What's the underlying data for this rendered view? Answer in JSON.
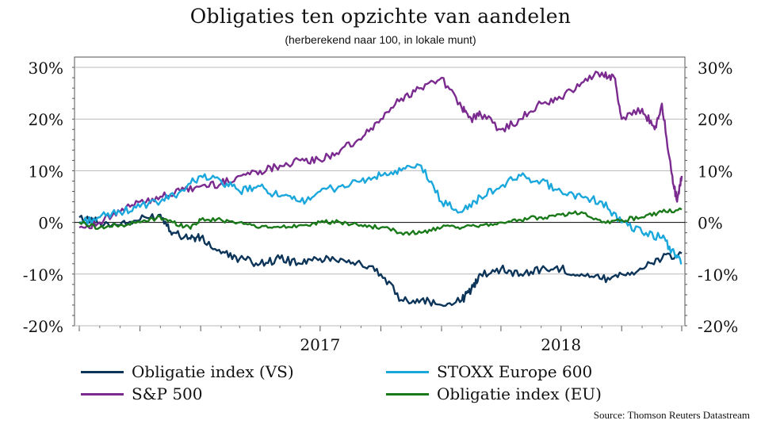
{
  "title": "Obligaties ten opzichte van aandelen",
  "subtitle": "(herberekend naar 100, in lokale munt)",
  "source": "Source: Thomson Reuters Datastream",
  "chart_data": {
    "type": "line",
    "title": "Obligaties ten opzichte van aandelen",
    "subtitle": "(herberekend naar 100, in lokale munt)",
    "xlabel": "",
    "ylabel": "",
    "x_tick_labels": [
      "2017",
      "2018"
    ],
    "y_tick_labels": [
      "30%",
      "20%",
      "10%",
      "0%",
      "-10%",
      "-20%"
    ],
    "y_ticks": [
      30,
      20,
      10,
      0,
      -10,
      -20
    ],
    "ylim": [
      -20,
      30
    ],
    "xlim": [
      "2016-07-01",
      "2018-12-31"
    ],
    "grid": "horizontal",
    "legend_position": "bottom",
    "dual_y_axis": true,
    "series": [
      {
        "name": "Obligatie index (VS)",
        "color": "#0d3559",
        "x": [
          "2016-07-01",
          "2016-08-01",
          "2016-09-01",
          "2016-10-01",
          "2016-11-01",
          "2016-11-20",
          "2016-12-15",
          "2017-01-01",
          "2017-02-01",
          "2017-03-01",
          "2017-04-01",
          "2017-05-01",
          "2017-06-01",
          "2017-07-01",
          "2017-08-01",
          "2017-09-01",
          "2017-10-01",
          "2017-11-01",
          "2017-12-01",
          "2018-01-01",
          "2018-02-01",
          "2018-02-15",
          "2018-03-01",
          "2018-04-01",
          "2018-05-01",
          "2018-06-01",
          "2018-07-01",
          "2018-08-01",
          "2018-09-01",
          "2018-10-01",
          "2018-11-01",
          "2018-12-01",
          "2018-12-31"
        ],
        "values": [
          1,
          0,
          -0.5,
          0.5,
          1.5,
          -2,
          -3,
          -3,
          -6,
          -7,
          -8,
          -7,
          -8,
          -7,
          -7,
          -8,
          -10,
          -15,
          -15,
          -16,
          -15,
          -13,
          -10,
          -9,
          -10,
          -9,
          -9,
          -10,
          -11,
          -10,
          -9,
          -7,
          -6
        ]
      },
      {
        "name": "S&P 500",
        "color": "#7b2b8f",
        "x": [
          "2016-07-01",
          "2016-08-01",
          "2016-09-01",
          "2016-10-01",
          "2016-11-01",
          "2016-12-01",
          "2017-01-01",
          "2017-02-01",
          "2017-03-01",
          "2017-04-01",
          "2017-05-01",
          "2017-06-01",
          "2017-07-01",
          "2017-08-01",
          "2017-09-01",
          "2017-10-01",
          "2017-11-01",
          "2017-12-01",
          "2018-01-01",
          "2018-02-01",
          "2018-02-15",
          "2018-03-01",
          "2018-04-01",
          "2018-05-01",
          "2018-06-01",
          "2018-07-01",
          "2018-08-01",
          "2018-09-01",
          "2018-09-20",
          "2018-10-01",
          "2018-11-01",
          "2018-11-20",
          "2018-12-01",
          "2018-12-15",
          "2018-12-24",
          "2018-12-31"
        ],
        "values": [
          -1,
          0,
          2,
          4,
          5,
          6,
          7,
          7.5,
          9,
          10,
          11,
          12,
          12,
          14,
          16,
          20,
          24,
          26,
          28,
          22,
          20,
          21,
          18,
          20,
          23,
          24,
          27,
          29,
          28,
          20,
          22,
          18,
          23,
          10,
          4,
          9
        ]
      },
      {
        "name": "STOXX Europe 600",
        "color": "#1aa7dc",
        "x": [
          "2016-07-01",
          "2016-08-01",
          "2016-09-01",
          "2016-10-01",
          "2016-11-01",
          "2016-12-01",
          "2017-01-01",
          "2017-02-01",
          "2017-03-01",
          "2017-04-01",
          "2017-05-01",
          "2017-06-01",
          "2017-07-01",
          "2017-08-01",
          "2017-09-01",
          "2017-10-01",
          "2017-11-01",
          "2017-12-01",
          "2018-01-01",
          "2018-02-01",
          "2018-03-01",
          "2018-04-01",
          "2018-05-01",
          "2018-06-01",
          "2018-07-01",
          "2018-08-01",
          "2018-09-01",
          "2018-10-01",
          "2018-11-01",
          "2018-12-01",
          "2018-12-20",
          "2018-12-31"
        ],
        "values": [
          0,
          1,
          2,
          3,
          4,
          6,
          9,
          8,
          6,
          7,
          5,
          4,
          6,
          7,
          8,
          9,
          10,
          11,
          4,
          2,
          5,
          7,
          9,
          8,
          6,
          5,
          4,
          0,
          -2,
          -3,
          -6,
          -8
        ]
      },
      {
        "name": "Obligatie index (EU)",
        "color": "#1a7a1a",
        "x": [
          "2016-07-01",
          "2016-08-01",
          "2016-09-01",
          "2016-10-01",
          "2016-11-01",
          "2016-11-20",
          "2016-12-15",
          "2017-01-01",
          "2017-02-01",
          "2017-03-01",
          "2017-04-01",
          "2017-05-01",
          "2017-06-01",
          "2017-07-01",
          "2017-08-01",
          "2017-09-01",
          "2017-10-01",
          "2017-11-01",
          "2017-12-01",
          "2018-01-01",
          "2018-02-01",
          "2018-03-01",
          "2018-04-01",
          "2018-05-01",
          "2018-06-01",
          "2018-07-01",
          "2018-08-01",
          "2018-09-01",
          "2018-10-01",
          "2018-11-01",
          "2018-12-01",
          "2018-12-31"
        ],
        "values": [
          0,
          -1,
          -0.5,
          0,
          1,
          0,
          -1,
          0.5,
          0.5,
          0,
          -1,
          -1,
          -0.5,
          0,
          0,
          -0.5,
          -1,
          -2,
          -2,
          -1,
          -1,
          -0.5,
          0,
          0.5,
          1,
          1.5,
          2,
          0,
          0.5,
          1,
          2,
          2.5
        ]
      }
    ]
  }
}
